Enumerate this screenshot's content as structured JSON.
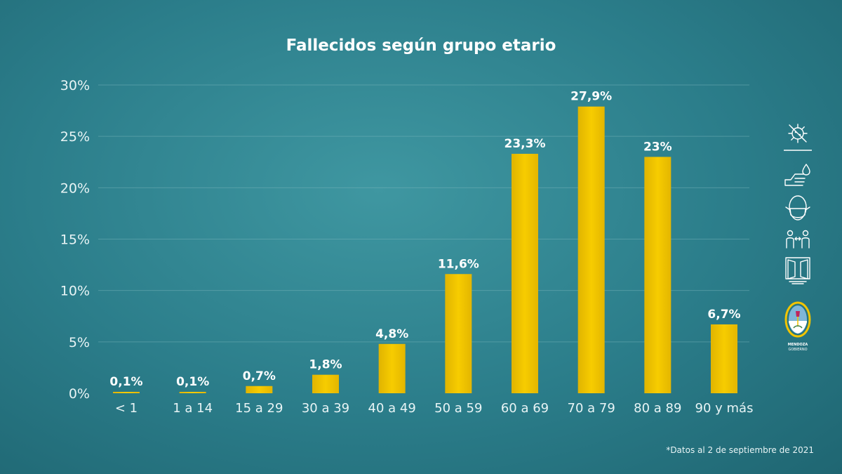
{
  "chart_data": {
    "type": "bar",
    "title": "Fallecidos según grupo etario",
    "categories": [
      "< 1",
      "1 a 14",
      "15 a 29",
      "30 a 39",
      "40 a 49",
      "50 a 59",
      "60 a 69",
      "70 a 79",
      "80 a 89",
      "90 y más"
    ],
    "values": [
      0.1,
      0.1,
      0.7,
      1.8,
      4.8,
      11.6,
      23.3,
      27.9,
      23,
      6.7
    ],
    "data_labels": [
      "0,1%",
      "0,1%",
      "0,7%",
      "1,8%",
      "4,8%",
      "11,6%",
      "23,3%",
      "27,9%",
      "23%",
      "6,7%"
    ],
    "yticks": [
      0,
      5,
      10,
      15,
      20,
      25,
      30
    ],
    "ytick_labels": [
      "0%",
      "5%",
      "10%",
      "15%",
      "20%",
      "25%",
      "30%"
    ],
    "ylim": [
      0,
      30
    ],
    "xlabel": "",
    "ylabel": "",
    "grid": true,
    "bar_color": "#f2c400"
  },
  "footnote": "*Datos al 2 de septiembre de 2021",
  "sidebar": {
    "icons": [
      "virus-icon",
      "hand-wash-icon",
      "face-mask-icon",
      "social-distance-icon",
      "window-ventilation-icon"
    ],
    "logo_icon": "mendoza-coat-of-arms-icon",
    "logo_text": [
      "MENDOZA",
      "GOBIERNO"
    ]
  },
  "colors": {
    "background": "#2f8894",
    "bar": "#f2c400",
    "text": "#ffffff"
  }
}
